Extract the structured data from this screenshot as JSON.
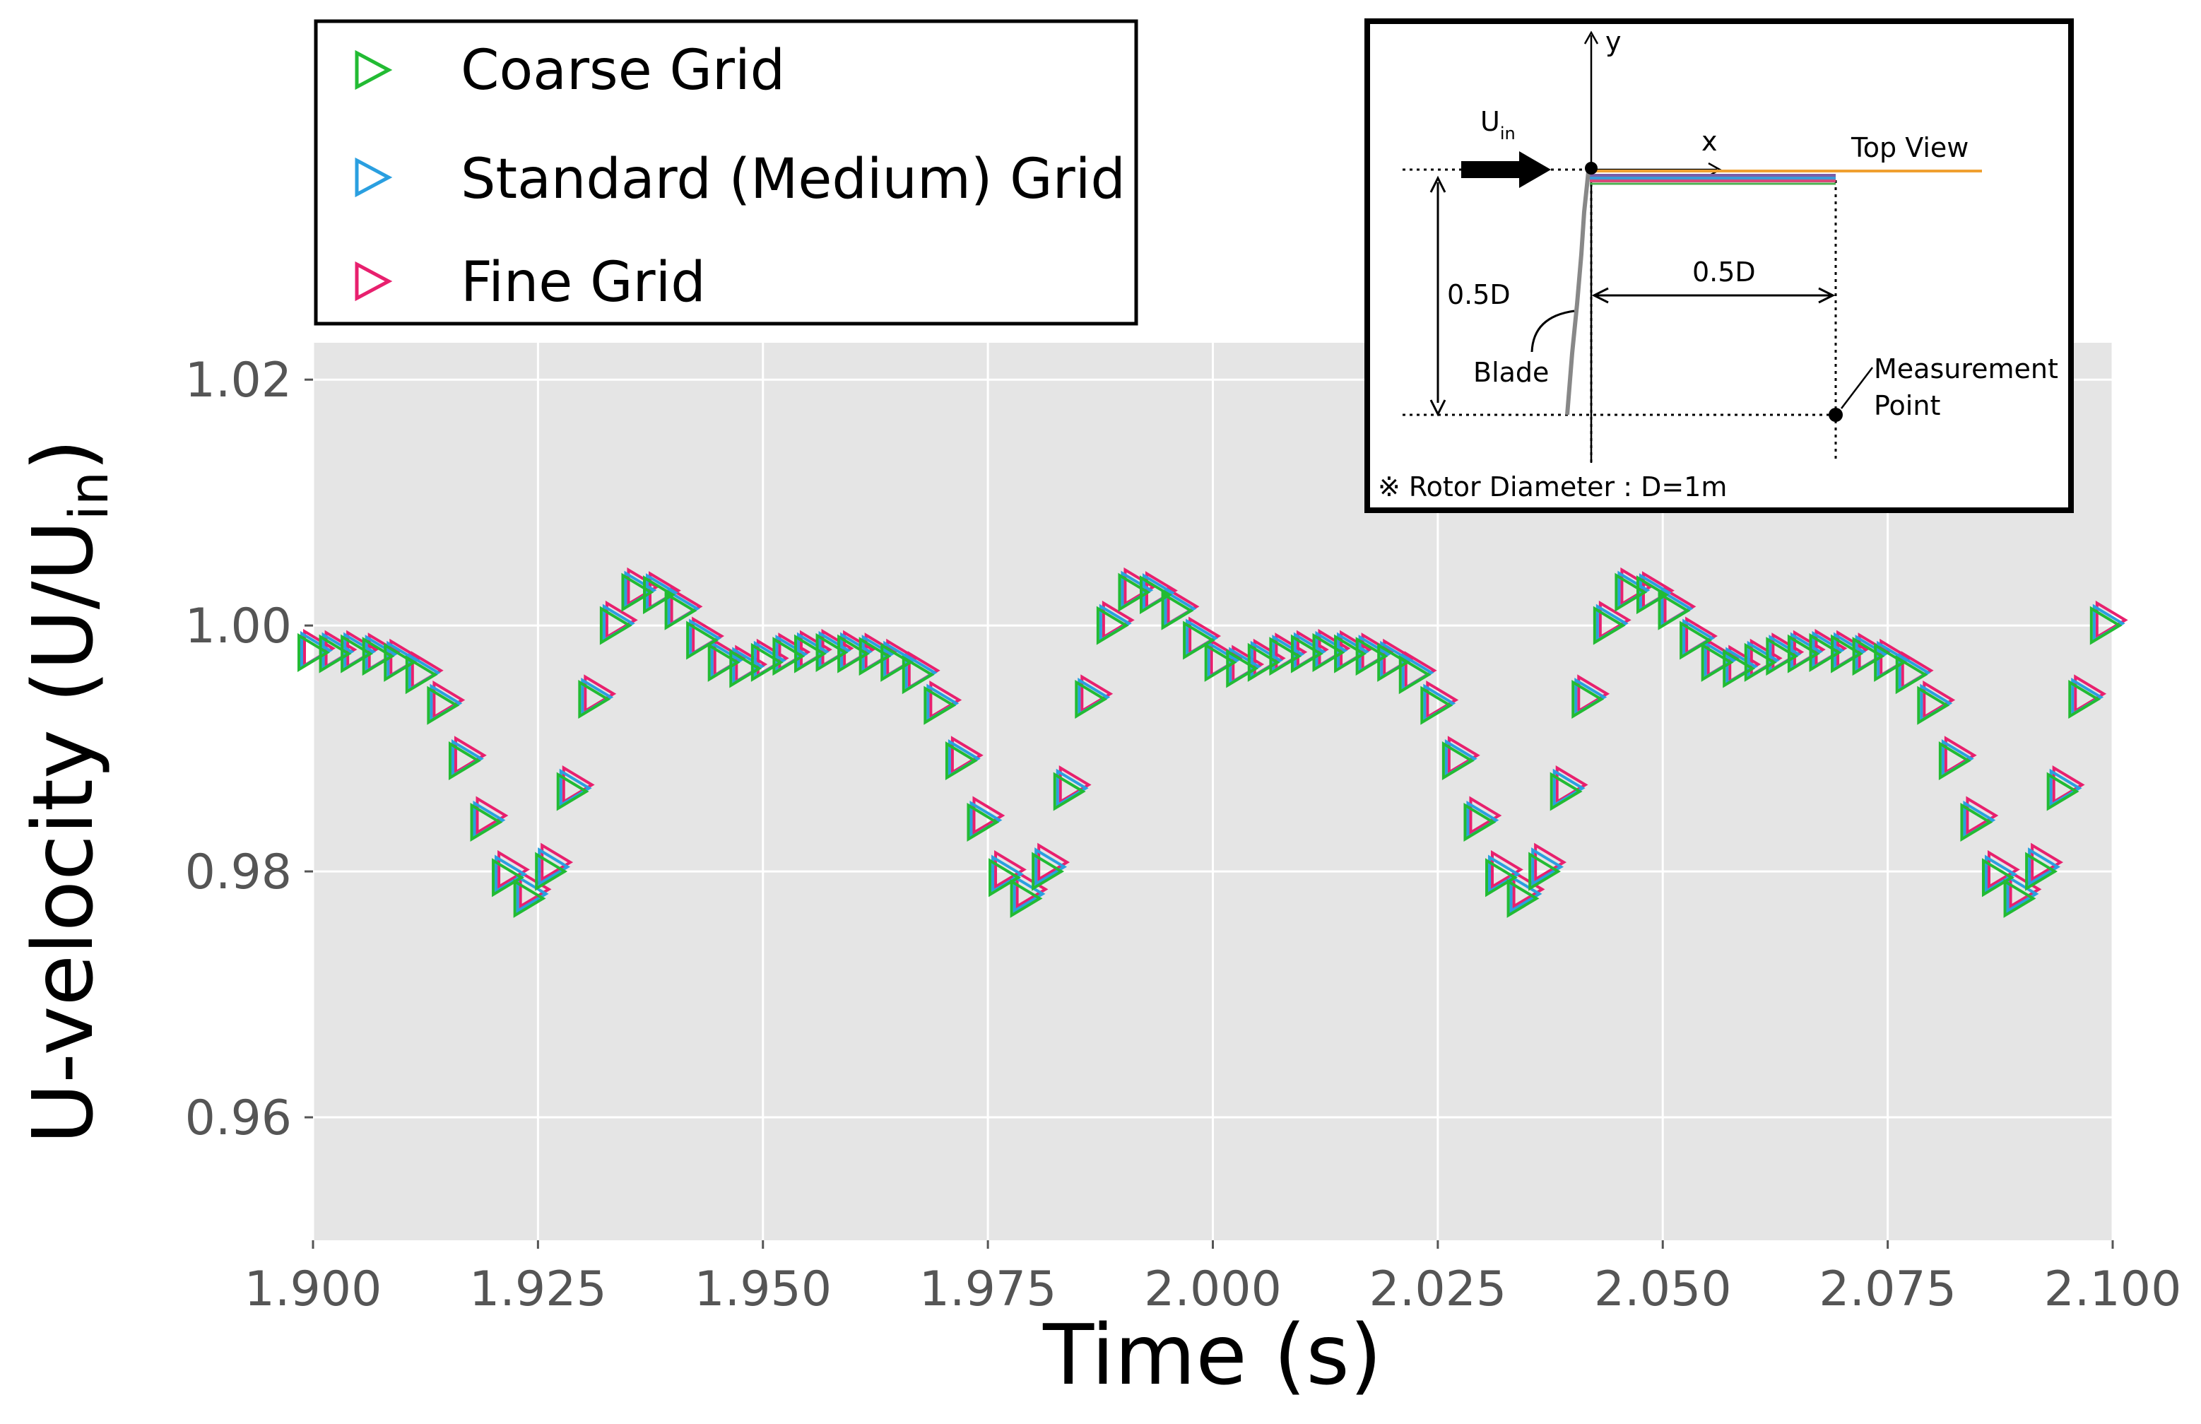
{
  "chart_data": {
    "type": "scatter",
    "xlabel": "Time (s)",
    "ylabel_main": "U-velocity (U/U",
    "ylabel_sub": "in",
    "ylabel_close": ")",
    "xlim": [
      1.9,
      2.1
    ],
    "ylim": [
      0.95,
      1.023
    ],
    "x_ticks": [
      1.9,
      1.925,
      1.95,
      1.975,
      2.0,
      2.025,
      2.05,
      2.075,
      2.1
    ],
    "x_tick_labels": [
      "1.900",
      "1.925",
      "1.950",
      "1.975",
      "2.000",
      "2.025",
      "2.050",
      "2.075",
      "2.100"
    ],
    "y_ticks": [
      0.96,
      0.98,
      1.0,
      1.02
    ],
    "y_tick_labels": [
      "0.96",
      "0.98",
      "1.00",
      "1.02"
    ],
    "grid": true,
    "background_color": "#e5e5e5",
    "legend_position": "top-left",
    "marker": "right-triangle-hollow",
    "x": [
      1.9,
      1.9024,
      1.9048,
      1.9072,
      1.9096,
      1.912,
      1.9144,
      1.9168,
      1.9192,
      1.9216,
      1.924,
      1.9264,
      1.9288,
      1.9312,
      1.9336,
      1.936,
      1.9384,
      1.9408,
      1.9432,
      1.9456,
      1.948,
      1.9504,
      1.9528,
      1.9552,
      1.9576,
      1.96,
      1.9624,
      1.9648,
      1.9672,
      1.9696,
      1.972,
      1.9744,
      1.9768,
      1.9792,
      1.9816,
      1.984,
      1.9864,
      1.9888,
      1.9912,
      1.9936,
      1.996,
      1.9984,
      2.0008,
      2.0032,
      2.0056,
      2.008,
      2.0104,
      2.0128,
      2.0152,
      2.0176,
      2.02,
      2.0224,
      2.0248,
      2.0272,
      2.0296,
      2.032,
      2.0344,
      2.0368,
      2.0392,
      2.0416,
      2.044,
      2.0464,
      2.0488,
      2.0512,
      2.0536,
      2.056,
      2.0584,
      2.0608,
      2.0632,
      2.0656,
      2.068,
      2.0704,
      2.0728,
      2.0752,
      2.0776,
      2.08,
      2.0824,
      2.0848,
      2.0872,
      2.0896,
      2.092,
      2.0944,
      2.0968,
      2.0992
    ],
    "series": [
      {
        "name": "Coarse Grid",
        "color": "#22bb33",
        "values": [
          0.9978,
          0.9977,
          0.9977,
          0.9975,
          0.997,
          0.996,
          0.9935,
          0.989,
          0.984,
          0.9795,
          0.9778,
          0.98,
          0.9865,
          0.994,
          1.0,
          1.0027,
          1.0025,
          1.0012,
          0.9988,
          0.997,
          0.9965,
          0.997,
          0.9975,
          0.9977,
          0.9978,
          0.9977,
          0.9975,
          0.997,
          0.996,
          0.9935,
          0.989,
          0.984,
          0.9795,
          0.9778,
          0.98,
          0.9865,
          0.994,
          1.0,
          1.0027,
          1.0025,
          1.0012,
          0.9988,
          0.997,
          0.9965,
          0.997,
          0.9975,
          0.9977,
          0.9978,
          0.9977,
          0.9975,
          0.997,
          0.996,
          0.9935,
          0.989,
          0.984,
          0.9795,
          0.9778,
          0.98,
          0.9865,
          0.994,
          1.0,
          1.0027,
          1.0025,
          1.0012,
          0.9988,
          0.997,
          0.9965,
          0.997,
          0.9975,
          0.9977,
          0.9978,
          0.9977,
          0.9975,
          0.997,
          0.996,
          0.9935,
          0.989,
          0.984,
          0.9795,
          0.9778,
          0.98,
          0.9865,
          0.994,
          1.0
        ]
      },
      {
        "name": "Standard (Medium) Grid",
        "color": "#2a9fe0",
        "values": [
          0.9978,
          0.9977,
          0.9977,
          0.9975,
          0.997,
          0.996,
          0.9935,
          0.989,
          0.984,
          0.9796,
          0.978,
          0.9802,
          0.9866,
          0.994,
          1.0,
          1.0027,
          1.0025,
          1.0012,
          0.9988,
          0.997,
          0.9965,
          0.997,
          0.9975,
          0.9977,
          0.9978,
          0.9977,
          0.9975,
          0.997,
          0.996,
          0.9935,
          0.989,
          0.984,
          0.9796,
          0.978,
          0.9802,
          0.9866,
          0.994,
          1.0,
          1.0027,
          1.0025,
          1.0012,
          0.9988,
          0.997,
          0.9965,
          0.997,
          0.9975,
          0.9977,
          0.9978,
          0.9977,
          0.9975,
          0.997,
          0.996,
          0.9935,
          0.989,
          0.984,
          0.9796,
          0.978,
          0.9802,
          0.9866,
          0.994,
          1.0,
          1.0027,
          1.0025,
          1.0012,
          0.9988,
          0.997,
          0.9965,
          0.997,
          0.9975,
          0.9977,
          0.9978,
          0.9977,
          0.9975,
          0.997,
          0.996,
          0.9935,
          0.989,
          0.984,
          0.9796,
          0.978,
          0.9802,
          0.9866,
          0.994,
          1.0
        ]
      },
      {
        "name": "Fine Grid",
        "color": "#e8206e",
        "values": [
          0.9978,
          0.9977,
          0.9977,
          0.9975,
          0.997,
          0.996,
          0.9936,
          0.9891,
          0.9842,
          0.9798,
          0.9782,
          0.9804,
          0.9867,
          0.9941,
          1.0001,
          1.0028,
          1.0025,
          1.0012,
          0.9988,
          0.997,
          0.9965,
          0.997,
          0.9975,
          0.9977,
          0.9978,
          0.9977,
          0.9975,
          0.997,
          0.996,
          0.9936,
          0.9891,
          0.9842,
          0.9798,
          0.9782,
          0.9804,
          0.9867,
          0.9941,
          1.0001,
          1.0028,
          1.0025,
          1.0012,
          0.9988,
          0.997,
          0.9965,
          0.997,
          0.9975,
          0.9977,
          0.9978,
          0.9977,
          0.9975,
          0.997,
          0.996,
          0.9936,
          0.9891,
          0.9842,
          0.9798,
          0.9782,
          0.9804,
          0.9867,
          0.9941,
          1.0001,
          1.0028,
          1.0025,
          1.0012,
          0.9988,
          0.997,
          0.9965,
          0.997,
          0.9975,
          0.9977,
          0.9978,
          0.9977,
          0.9975,
          0.997,
          0.996,
          0.9936,
          0.9891,
          0.9842,
          0.9798,
          0.9782,
          0.9804,
          0.9867,
          0.9941,
          1.0001
        ]
      }
    ],
    "inset": {
      "y_axis_label": "y",
      "x_axis_label": "x",
      "inflow_label": "U",
      "inflow_sub": "in",
      "view_label": "Top View",
      "vertical_dim_label": "0.5D",
      "horizontal_dim_label": "0.5D",
      "blade_label": "Blade",
      "measurement_label_line1": "Measurement",
      "measurement_label_line2": "Point",
      "footnote": "※ Rotor Diameter : D=1m",
      "wake_line_colors": [
        "#f0a030",
        "#7b5ea7",
        "#3c9ad6",
        "#d9487a",
        "#4caf50"
      ]
    }
  }
}
